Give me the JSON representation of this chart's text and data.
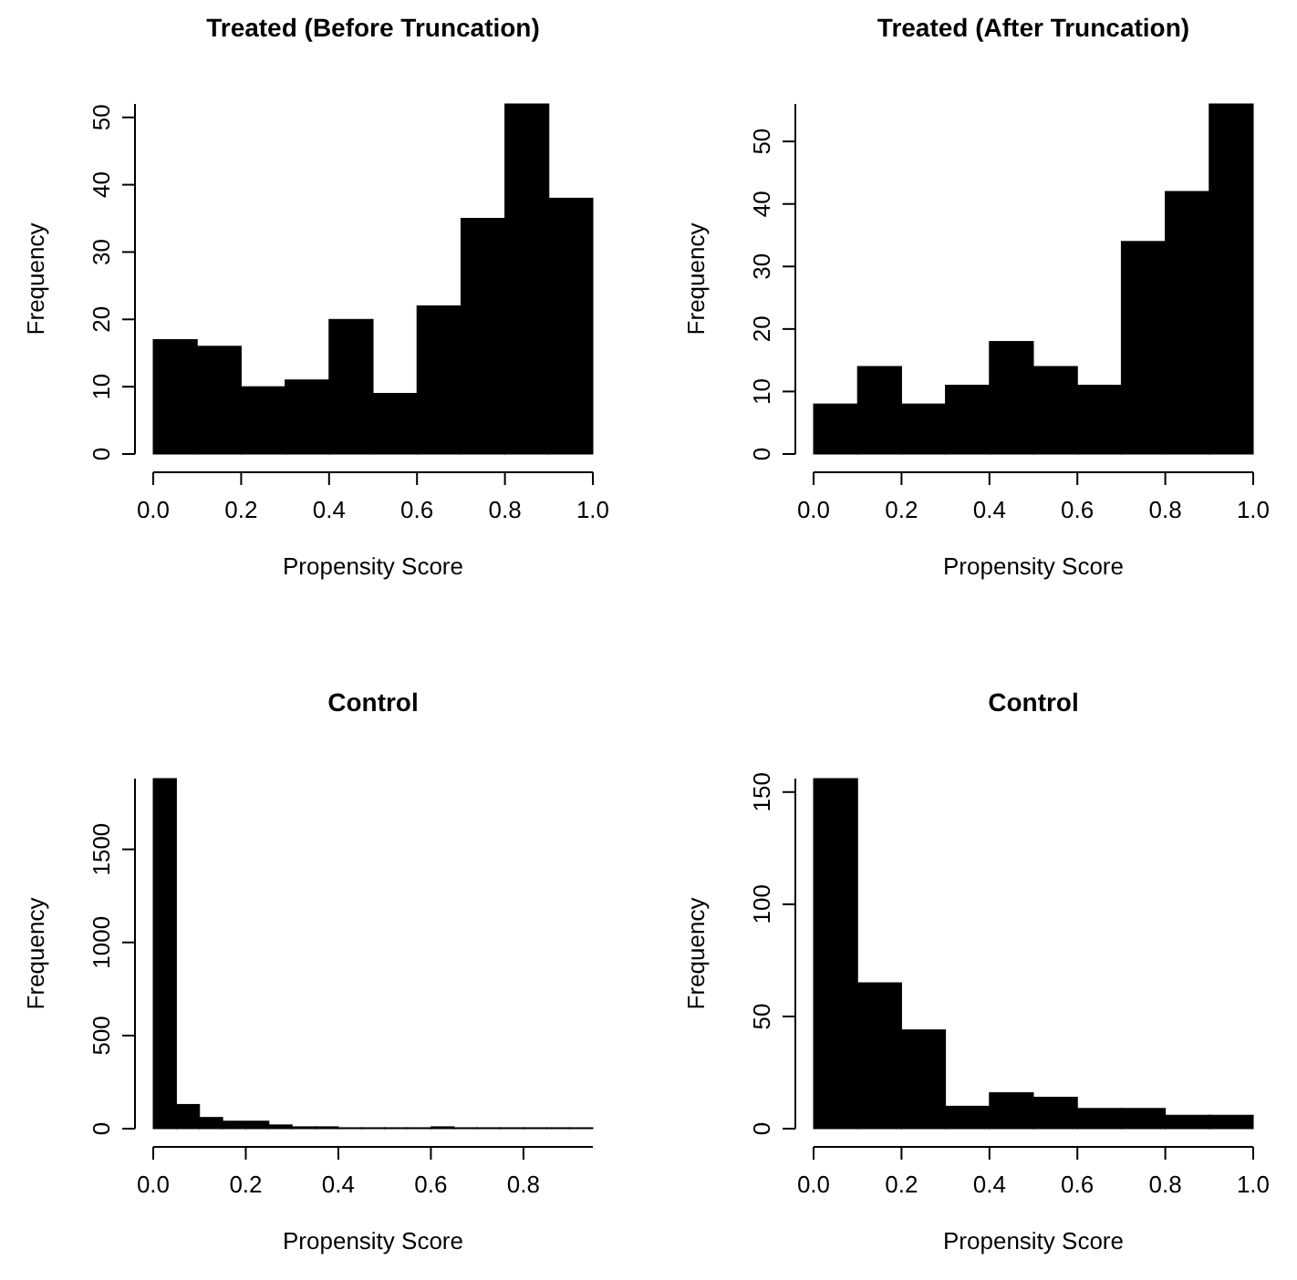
{
  "chart_data": [
    {
      "type": "histogram",
      "title": "Treated (Before Truncation)",
      "xlabel": "Propensity Score",
      "ylabel": "Frequency",
      "bins": [
        0,
        0.1,
        0.2,
        0.3,
        0.4,
        0.5,
        0.6,
        0.7,
        0.8,
        0.9,
        1.0
      ],
      "values": [
        17,
        16,
        10,
        11,
        20,
        9,
        22,
        35,
        52,
        38
      ],
      "color": "#000000",
      "xlim": [
        0,
        1
      ],
      "ylim": [
        0,
        52
      ],
      "xticks": [
        {
          "value": 0,
          "label": "0.0"
        },
        {
          "value": 0.2,
          "label": "0.2"
        },
        {
          "value": 0.4,
          "label": "0.4"
        },
        {
          "value": 0.6,
          "label": "0.6"
        },
        {
          "value": 0.8,
          "label": "0.8"
        },
        {
          "value": 1,
          "label": "1.0"
        }
      ],
      "yticks": [
        0,
        10,
        20,
        30,
        40,
        50
      ]
    },
    {
      "type": "histogram",
      "title": "Treated (After Truncation)",
      "xlabel": "Propensity Score",
      "ylabel": "Frequency",
      "bins": [
        0,
        0.1,
        0.2,
        0.3,
        0.4,
        0.5,
        0.6,
        0.7,
        0.8,
        0.9,
        1.0
      ],
      "values": [
        8,
        14,
        8,
        11,
        18,
        14,
        11,
        34,
        42,
        56
      ],
      "color": "#000000",
      "xlim": [
        0,
        1
      ],
      "ylim": [
        0,
        56
      ],
      "xticks": [
        {
          "value": 0,
          "label": "0.0"
        },
        {
          "value": 0.2,
          "label": "0.2"
        },
        {
          "value": 0.4,
          "label": "0.4"
        },
        {
          "value": 0.6,
          "label": "0.6"
        },
        {
          "value": 0.8,
          "label": "0.8"
        },
        {
          "value": 1,
          "label": "1.0"
        }
      ],
      "yticks": [
        0,
        10,
        20,
        30,
        40,
        50
      ]
    },
    {
      "type": "histogram",
      "title": "Control",
      "xlabel": "Propensity Score",
      "ylabel": "Frequency",
      "bins": [
        0,
        0.05,
        0.1,
        0.15,
        0.2,
        0.25,
        0.3,
        0.35,
        0.4,
        0.45,
        0.5,
        0.55,
        0.6,
        0.65,
        0.7,
        0.75,
        0.8,
        0.85,
        0.9,
        0.95
      ],
      "values": [
        1880,
        130,
        60,
        40,
        40,
        20,
        10,
        10,
        5,
        5,
        5,
        5,
        10,
        5,
        5,
        5,
        5,
        5,
        5
      ],
      "color": "#000000",
      "xlim": [
        0,
        0.95
      ],
      "ylim": [
        0,
        1880
      ],
      "xticks": [
        {
          "value": 0,
          "label": "0.0"
        },
        {
          "value": 0.2,
          "label": "0.2"
        },
        {
          "value": 0.4,
          "label": "0.4"
        },
        {
          "value": 0.6,
          "label": "0.6"
        },
        {
          "value": 0.8,
          "label": "0.8"
        }
      ],
      "yticks": [
        0,
        500,
        1000,
        1500
      ]
    },
    {
      "type": "histogram",
      "title": "Control",
      "xlabel": "Propensity Score",
      "ylabel": "Frequency",
      "bins": [
        0,
        0.1,
        0.2,
        0.3,
        0.4,
        0.5,
        0.6,
        0.7,
        0.8,
        0.9,
        1.0
      ],
      "values": [
        156,
        65,
        44,
        10,
        16,
        14,
        9,
        9,
        6,
        6
      ],
      "color": "#000000",
      "xlim": [
        0,
        1
      ],
      "ylim": [
        0,
        156
      ],
      "xticks": [
        {
          "value": 0,
          "label": "0.0"
        },
        {
          "value": 0.2,
          "label": "0.2"
        },
        {
          "value": 0.4,
          "label": "0.4"
        },
        {
          "value": 0.6,
          "label": "0.6"
        },
        {
          "value": 0.8,
          "label": "0.8"
        },
        {
          "value": 1,
          "label": "1.0"
        }
      ],
      "yticks": [
        0,
        50,
        100,
        150
      ]
    }
  ]
}
